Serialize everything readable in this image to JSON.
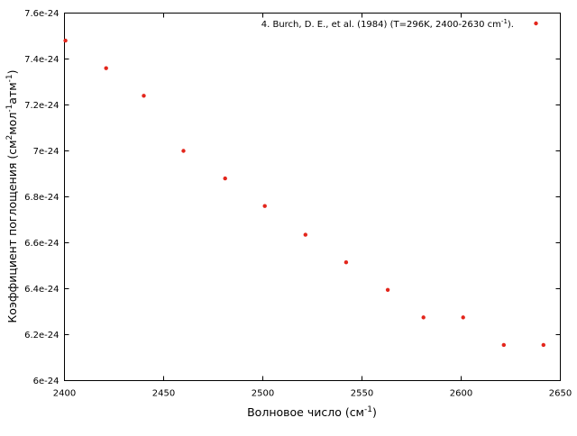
{
  "chart_data": {
    "type": "scatter",
    "xlabel": "Волновое число (см",
    "xlabel_sup": "-1",
    "xlabel_end": ")",
    "ylabel": "Коэффициент поглощения (см",
    "ylabel_sup1": "2",
    "ylabel_mid1": "мол",
    "ylabel_sup2": "-1",
    "ylabel_mid2": "атм",
    "ylabel_sup3": "-1",
    "ylabel_end": ")",
    "xlim": [
      2400,
      2650
    ],
    "ylim": [
      6e-24,
      7.6e-24
    ],
    "x_ticks": [
      {
        "value": 2400,
        "label": "2400"
      },
      {
        "value": 2450,
        "label": "2450"
      },
      {
        "value": 2500,
        "label": "2500"
      },
      {
        "value": 2550,
        "label": "2550"
      },
      {
        "value": 2600,
        "label": "2600"
      },
      {
        "value": 2650,
        "label": "2650"
      }
    ],
    "y_ticks": [
      {
        "value": 6e-24,
        "label": "6e-24"
      },
      {
        "value": 6.2e-24,
        "label": "6.2e-24"
      },
      {
        "value": 6.4e-24,
        "label": "6.4e-24"
      },
      {
        "value": 6.6e-24,
        "label": "6.6e-24"
      },
      {
        "value": 6.8e-24,
        "label": "6.8e-24"
      },
      {
        "value": 7e-24,
        "label": "7e-24"
      },
      {
        "value": 7.2e-24,
        "label": "7.2e-24"
      },
      {
        "value": 7.4e-24,
        "label": "7.4e-24"
      },
      {
        "value": 7.6e-24,
        "label": "7.6e-24"
      }
    ],
    "grid": false,
    "legend_position": "top-right",
    "series": [
      {
        "name": "4. Burch, D. E., et al. (1984) (T=296K, 2400-2630 cm",
        "name_sup": "-1",
        "name_end": ").",
        "color": "#e3261c",
        "points": [
          {
            "x": 2400.5,
            "y": 7.48e-24
          },
          {
            "x": 2421,
            "y": 7.36e-24
          },
          {
            "x": 2440,
            "y": 7.24e-24
          },
          {
            "x": 2460,
            "y": 7e-24
          },
          {
            "x": 2481,
            "y": 6.88e-24
          },
          {
            "x": 2501,
            "y": 6.76e-24
          },
          {
            "x": 2521.5,
            "y": 6.635e-24
          },
          {
            "x": 2542,
            "y": 6.515e-24
          },
          {
            "x": 2563,
            "y": 6.395e-24
          },
          {
            "x": 2581,
            "y": 6.275e-24
          },
          {
            "x": 2601,
            "y": 6.275e-24
          },
          {
            "x": 2621.5,
            "y": 6.155e-24
          },
          {
            "x": 2641.5,
            "y": 6.155e-24
          }
        ]
      }
    ]
  }
}
